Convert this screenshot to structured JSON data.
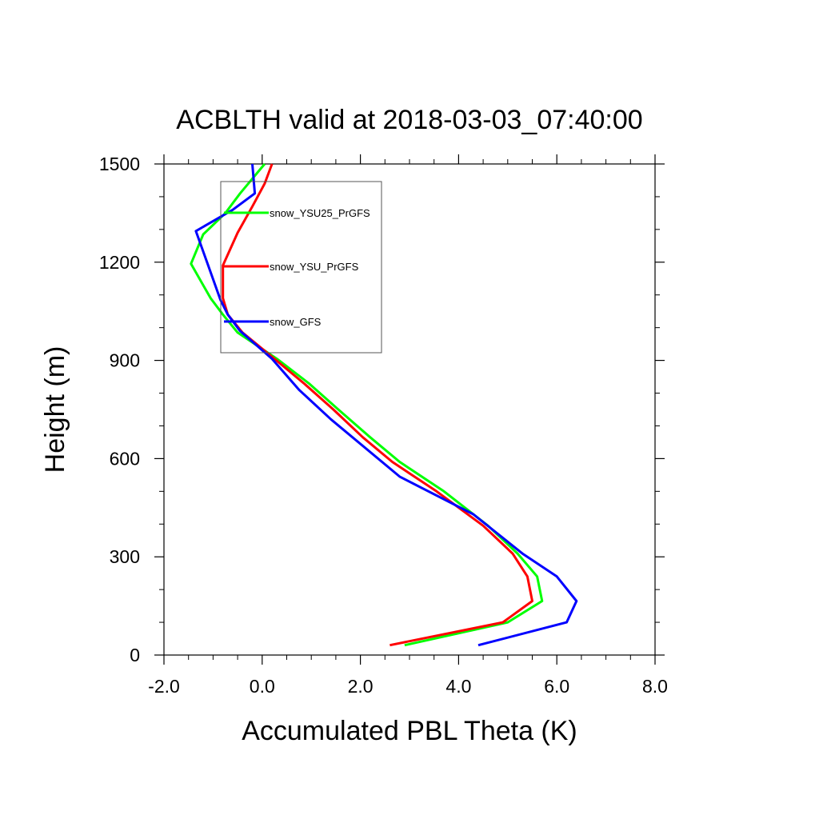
{
  "chart_data": {
    "type": "line",
    "title": "ACBLTH valid at 2018-03-03_07:40:00",
    "xlabel": "Accumulated PBL Theta (K)",
    "ylabel": "Height (m)",
    "xlim": [
      -2.0,
      8.0
    ],
    "ylim": [
      0,
      1500
    ],
    "xticks": [
      "-2.0",
      "0.0",
      "2.0",
      "4.0",
      "6.0",
      "8.0"
    ],
    "yticks": [
      "0",
      "300",
      "600",
      "900",
      "1200",
      "1500"
    ],
    "xtick_values": [
      -2,
      0,
      2,
      4,
      6,
      8
    ],
    "ytick_values": [
      0,
      300,
      600,
      900,
      1200,
      1500
    ],
    "grid": false,
    "legend_position": "top-left",
    "series": [
      {
        "name": "snow_YSU25_PrGFS",
        "color": "#00ff00",
        "points": [
          [
            2.9,
            30
          ],
          [
            5.0,
            100
          ],
          [
            5.7,
            165
          ],
          [
            5.6,
            240
          ],
          [
            5.2,
            310
          ],
          [
            4.6,
            395
          ],
          [
            3.7,
            500
          ],
          [
            2.8,
            590
          ],
          [
            2.2,
            665
          ],
          [
            1.55,
            750
          ],
          [
            0.95,
            830
          ],
          [
            0.3,
            905
          ],
          [
            -0.5,
            985
          ],
          [
            -0.8,
            1040
          ],
          [
            -1.05,
            1090
          ],
          [
            -1.45,
            1195
          ],
          [
            -1.2,
            1285
          ],
          [
            -0.75,
            1350
          ],
          [
            -0.45,
            1410
          ],
          [
            0.05,
            1500
          ]
        ]
      },
      {
        "name": "snow_YSU_PrGFS",
        "color": "#ff0000",
        "points": [
          [
            2.6,
            30
          ],
          [
            4.9,
            100
          ],
          [
            5.5,
            165
          ],
          [
            5.4,
            240
          ],
          [
            5.1,
            310
          ],
          [
            4.5,
            395
          ],
          [
            3.55,
            500
          ],
          [
            2.65,
            590
          ],
          [
            2.05,
            665
          ],
          [
            1.45,
            750
          ],
          [
            0.85,
            830
          ],
          [
            0.25,
            905
          ],
          [
            -0.4,
            985
          ],
          [
            -0.7,
            1040
          ],
          [
            -0.8,
            1090
          ],
          [
            -0.8,
            1190
          ],
          [
            -0.5,
            1290
          ],
          [
            -0.2,
            1370
          ],
          [
            0.05,
            1440
          ],
          [
            0.2,
            1500
          ]
        ]
      },
      {
        "name": "snow_GFS",
        "color": "#0000ff",
        "points": [
          [
            4.4,
            30
          ],
          [
            6.2,
            100
          ],
          [
            6.4,
            165
          ],
          [
            6.0,
            240
          ],
          [
            5.3,
            310
          ],
          [
            4.3,
            430
          ],
          [
            2.8,
            545
          ],
          [
            1.4,
            720
          ],
          [
            0.75,
            810
          ],
          [
            0.2,
            905
          ],
          [
            -0.45,
            990
          ],
          [
            -0.7,
            1040
          ],
          [
            -0.85,
            1085
          ],
          [
            -1.1,
            1190
          ],
          [
            -1.35,
            1295
          ],
          [
            -0.6,
            1360
          ],
          [
            -0.15,
            1410
          ],
          [
            -0.2,
            1500
          ]
        ]
      }
    ]
  }
}
